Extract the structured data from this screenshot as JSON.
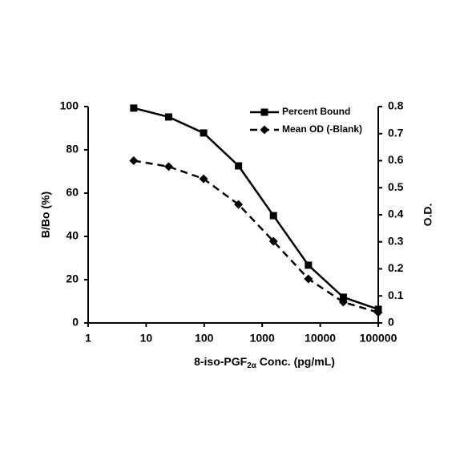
{
  "chart_data": {
    "type": "line",
    "x_label": [
      "8-iso-PGF",
      "2α",
      " Conc. (pg/mL)"
    ],
    "y_label": "B/Bo (%)",
    "y2_label": "O.D.",
    "x": [
      6.1,
      24.4,
      97.7,
      390.6,
      1562.5,
      6250,
      25000,
      100000
    ],
    "series": [
      {
        "name": "Percent Bound",
        "color": "#000000",
        "marker": "square",
        "dash": false,
        "values": [
          99.3,
          95.2,
          87.8,
          72.6,
          49.6,
          26.7,
          11.9,
          6.3
        ]
      },
      {
        "name": "Mean OD (-Blank)",
        "color": "#000000",
        "marker": "diamond",
        "dash": true,
        "axis": "y2",
        "values": [
          0.6,
          0.578,
          0.533,
          0.438,
          0.302,
          0.163,
          0.077,
          0.039
        ]
      }
    ],
    "xscale": "log",
    "xlim": [
      1,
      100000
    ],
    "xticks": [
      1,
      10,
      100,
      1000,
      10000,
      100000
    ],
    "ylim": [
      0,
      100
    ],
    "yticks": [
      0,
      20,
      40,
      60,
      80,
      100
    ],
    "y2lim": [
      0,
      0.8
    ],
    "y2ticks": [
      0,
      0.1,
      0.2,
      0.3,
      0.4,
      0.5,
      0.6,
      0.7,
      0.8
    ],
    "legend": "upper right",
    "grid": false
  }
}
